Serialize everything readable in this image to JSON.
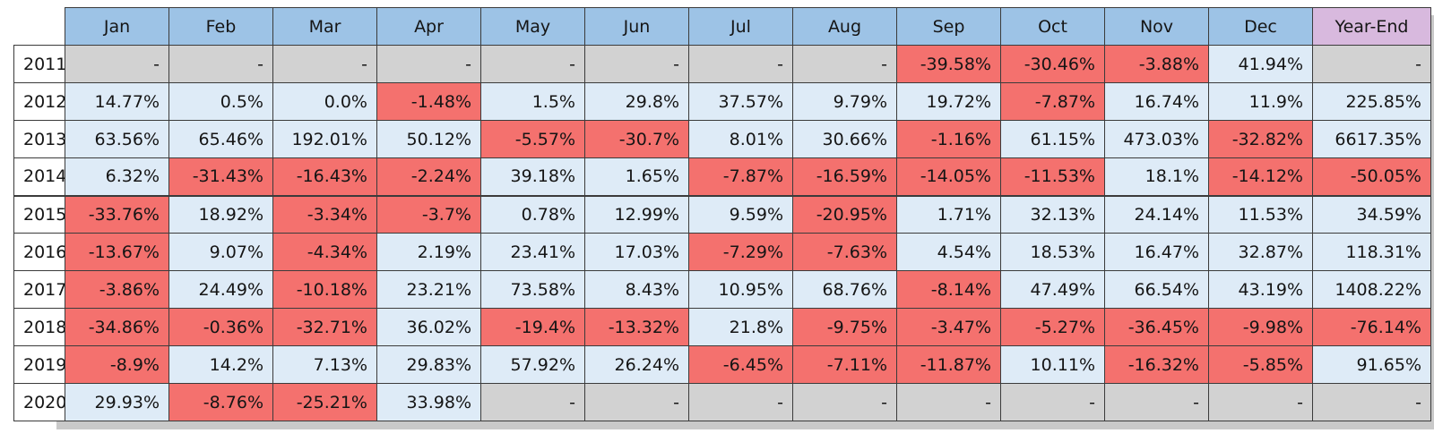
{
  "chart_data": {
    "type": "table",
    "columns": [
      "Jan",
      "Feb",
      "Mar",
      "Apr",
      "May",
      "Jun",
      "Jul",
      "Aug",
      "Sep",
      "Oct",
      "Nov",
      "Dec",
      "Year-End"
    ],
    "rows": [
      {
        "year": "2011",
        "values": [
          "-",
          "-",
          "-",
          "-",
          "-",
          "-",
          "-",
          "-",
          "-39.58%",
          "-30.46%",
          "-3.88%",
          "41.94%",
          "-"
        ]
      },
      {
        "year": "2012",
        "values": [
          "14.77%",
          "0.5%",
          "0.0%",
          "-1.48%",
          "1.5%",
          "29.8%",
          "37.57%",
          "9.79%",
          "19.72%",
          "-7.87%",
          "16.74%",
          "11.9%",
          "225.85%"
        ]
      },
      {
        "year": "2013",
        "values": [
          "63.56%",
          "65.46%",
          "192.01%",
          "50.12%",
          "-5.57%",
          "-30.7%",
          "8.01%",
          "30.66%",
          "-1.16%",
          "61.15%",
          "473.03%",
          "-32.82%",
          "6617.35%"
        ]
      },
      {
        "year": "2014",
        "values": [
          "6.32%",
          "-31.43%",
          "-16.43%",
          "-2.24%",
          "39.18%",
          "1.65%",
          "-7.87%",
          "-16.59%",
          "-14.05%",
          "-11.53%",
          "18.1%",
          "-14.12%",
          "-50.05%"
        ]
      },
      {
        "year": "2015",
        "values": [
          "-33.76%",
          "18.92%",
          "-3.34%",
          "-3.7%",
          "0.78%",
          "12.99%",
          "9.59%",
          "-20.95%",
          "1.71%",
          "32.13%",
          "24.14%",
          "11.53%",
          "34.59%"
        ]
      },
      {
        "year": "2016",
        "values": [
          "-13.67%",
          "9.07%",
          "-4.34%",
          "2.19%",
          "23.41%",
          "17.03%",
          "-7.29%",
          "-7.63%",
          "4.54%",
          "18.53%",
          "16.47%",
          "32.87%",
          "118.31%"
        ]
      },
      {
        "year": "2017",
        "values": [
          "-3.86%",
          "24.49%",
          "-10.18%",
          "23.21%",
          "73.58%",
          "8.43%",
          "10.95%",
          "68.76%",
          "-8.14%",
          "47.49%",
          "66.54%",
          "43.19%",
          "1408.22%"
        ]
      },
      {
        "year": "2018",
        "values": [
          "-34.86%",
          "-0.36%",
          "-32.71%",
          "36.02%",
          "-19.4%",
          "-13.32%",
          "21.8%",
          "-9.75%",
          "-3.47%",
          "-5.27%",
          "-36.45%",
          "-9.98%",
          "-76.14%"
        ]
      },
      {
        "year": "2019",
        "values": [
          "-8.9%",
          "14.2%",
          "7.13%",
          "29.83%",
          "57.92%",
          "26.24%",
          "-6.45%",
          "-7.11%",
          "-11.87%",
          "10.11%",
          "-16.32%",
          "-5.85%",
          "91.65%"
        ]
      },
      {
        "year": "2020",
        "values": [
          "29.93%",
          "-8.76%",
          "-25.21%",
          "33.98%",
          "-",
          "-",
          "-",
          "-",
          "-",
          "-",
          "-",
          "-",
          "-"
        ]
      }
    ],
    "missing_value_placeholder": "-",
    "layout": {
      "grid": true,
      "header_row": true,
      "year_column": true,
      "rule_after_year": "2014"
    }
  },
  "colors": {
    "month_header_bg": "#9dc3e6",
    "yearend_header_bg": "#d8b9de",
    "positive_bg": "#deebf7",
    "negative_bg": "#f4716e",
    "missing_bg": "#d2d2d2",
    "year_cell_bg": "#ffffff",
    "border": "#3b3b3b",
    "text": "#151515",
    "shadow": "#c9c9c9"
  }
}
